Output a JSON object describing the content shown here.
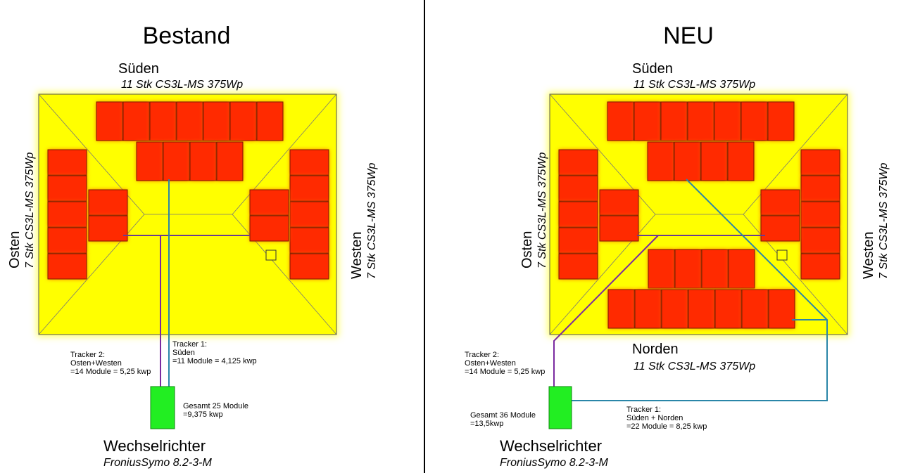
{
  "panels": [
    {
      "title": "Bestand",
      "south": {
        "label": "Süden",
        "modules": "11 Stk CS3L-MS 375Wp"
      },
      "east": {
        "label": "Osten",
        "modules": "7 Stk CS3L-MS 375Wp"
      },
      "west": {
        "label": "Westen",
        "modules": "7 Stk CS3L-MS 375Wp"
      },
      "tracker2": [
        "Tracker 2:",
        "Osten+Westen",
        "=14 Module = 5,25 kwp"
      ],
      "tracker1": [
        "Tracker 1:",
        "Süden",
        "=11 Module = 4,125 kwp"
      ],
      "total": [
        "Gesamt 25 Module",
        "=9,375 kwp"
      ],
      "inverter": {
        "label": "Wechselrichter",
        "model": "FroniusSymo 8.2-3-M"
      }
    },
    {
      "title": "NEU",
      "south": {
        "label": "Süden",
        "modules": "11 Stk CS3L-MS 375Wp"
      },
      "east": {
        "label": "Osten",
        "modules": "7 Stk CS3L-MS 375Wp"
      },
      "west": {
        "label": "Westen",
        "modules": "7 Stk CS3L-MS 375Wp"
      },
      "north": {
        "label": "Norden",
        "modules": "11 Stk CS3L-MS 375Wp"
      },
      "tracker2": [
        "Tracker 2:",
        "Osten+Westen",
        "=14 Module = 5,25 kwp"
      ],
      "tracker1": [
        "Tracker 1:",
        "Süden + Norden",
        "=22 Module = 8,25 kwp"
      ],
      "total": [
        "Gesamt 36 Module",
        "=13,5kwp"
      ],
      "inverter": {
        "label": "Wechselrichter",
        "model": "FroniusSymo 8.2-3-M"
      }
    }
  ]
}
